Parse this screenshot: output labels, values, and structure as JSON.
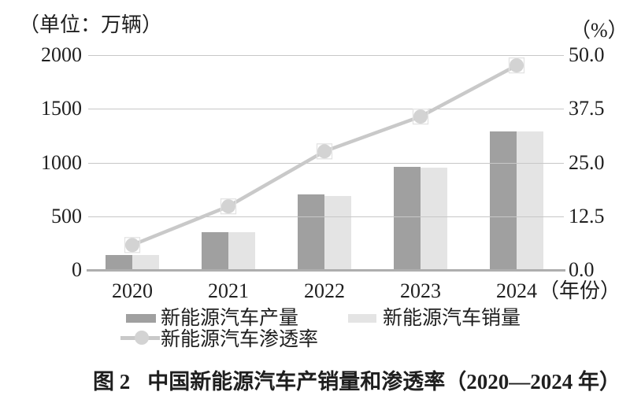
{
  "figure": {
    "caption_prefix": "图 2",
    "caption_title": "中国新能源汽车产销量和渗透率（2020—2024 年）"
  },
  "chart_data": {
    "type": "bar",
    "subtype": "grouped bars with overlaid line on secondary axis",
    "title": "中国新能源汽车产销量和渗透率（2020—2024 年）",
    "grid": true,
    "legend_position": "bottom",
    "left_axis": {
      "unit_label": "（单位：万辆）",
      "ticks": [
        "2000",
        "1500",
        "1000",
        "500",
        "0"
      ],
      "min": 0,
      "max": 2000
    },
    "right_axis": {
      "unit_label": "（%）",
      "ticks": [
        "50.0",
        "37.5",
        "25.0",
        "12.5",
        "0.0"
      ],
      "min": 0,
      "max": 50
    },
    "x_axis": {
      "categories": [
        "2020",
        "2021",
        "2022",
        "2023",
        "2024"
      ],
      "suffix_label": "（年份）"
    },
    "series": [
      {
        "id": "production",
        "name": "新能源汽车产量",
        "type": "bar",
        "axis": "left",
        "color": "#a0a0a0",
        "values": [
          136.6,
          354.5,
          705.8,
          958.7,
          1288.8
        ]
      },
      {
        "id": "sales",
        "name": "新能源汽车销量",
        "type": "bar",
        "axis": "left",
        "color": "#e4e4e4",
        "values": [
          136.7,
          352.1,
          688.7,
          949.5,
          1286.6
        ]
      },
      {
        "id": "penetration",
        "name": "新能源汽车渗透率",
        "type": "line",
        "axis": "right",
        "color": "#c9c9c9",
        "marker_color": "#d3d3d3",
        "marker_border_color": "#e3e3e3",
        "values": [
          5.8,
          14.8,
          27.6,
          35.7,
          47.6
        ]
      }
    ]
  }
}
